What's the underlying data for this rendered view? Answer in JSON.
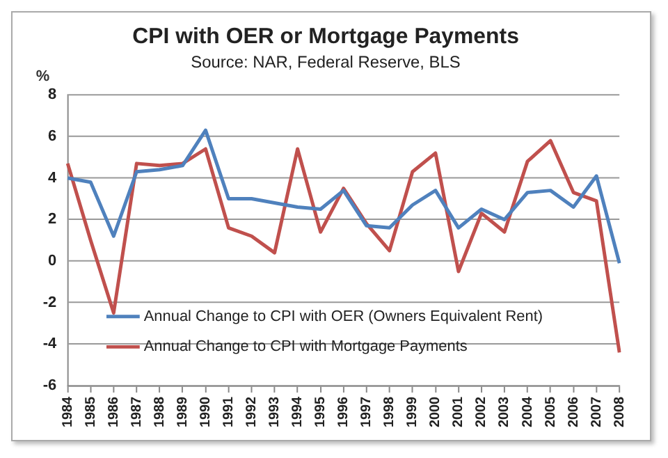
{
  "chart_data": {
    "type": "line",
    "title": "CPI with OER or Mortgage Payments",
    "subtitle": "Source: NAR, Federal Reserve, BLS",
    "ylabel": "%",
    "categories": [
      "1984",
      "1985",
      "1986",
      "1987",
      "1988",
      "1989",
      "1990",
      "1991",
      "1992",
      "1993",
      "1994",
      "1995",
      "1996",
      "1997",
      "1998",
      "1999",
      "2000",
      "2001",
      "2002",
      "2003",
      "2004",
      "2005",
      "2006",
      "2007",
      "2008"
    ],
    "series": [
      {
        "name": "Annual Change to CPI with OER (Owners Equivalent Rent)",
        "color": "#4f81bd",
        "values": [
          4.0,
          3.8,
          1.2,
          4.3,
          4.4,
          4.6,
          6.3,
          3.0,
          3.0,
          2.8,
          2.6,
          2.5,
          3.4,
          1.7,
          1.6,
          2.7,
          3.4,
          1.6,
          2.5,
          2.0,
          3.3,
          3.4,
          2.6,
          4.1,
          -0.1
        ]
      },
      {
        "name": "Annual Change to CPI with Mortgage Payments",
        "color": "#c0504d",
        "values": [
          4.7,
          1.0,
          -2.5,
          4.7,
          4.6,
          4.7,
          5.4,
          1.6,
          1.2,
          0.4,
          5.4,
          1.4,
          3.5,
          1.8,
          0.5,
          4.3,
          5.2,
          -0.5,
          2.3,
          1.4,
          4.8,
          5.8,
          3.3,
          2.9,
          -4.4
        ]
      }
    ],
    "ylim": [
      -6,
      8
    ],
    "yticks": [
      -6,
      -4,
      -2,
      0,
      2,
      4,
      6,
      8
    ],
    "grid": "y",
    "legend": "bottom left",
    "marker": "none",
    "line_style": "solid"
  }
}
